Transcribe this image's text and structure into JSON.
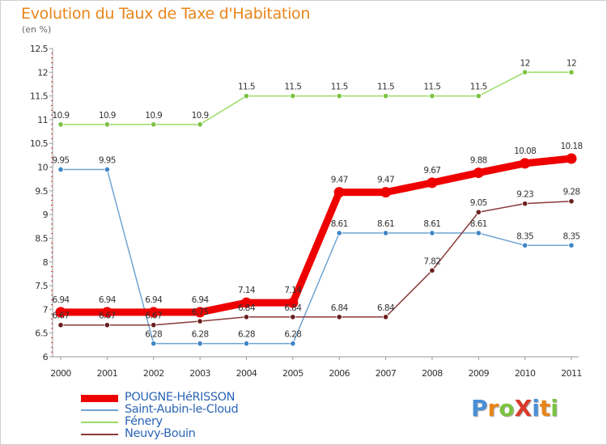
{
  "header": {
    "title": "Evolution du Taux de Taxe d'Habitation",
    "subtitle": "(en %)"
  },
  "logo": {
    "text": "ProXiti",
    "letters": [
      {
        "ch": "P",
        "color": "#4a8fd6"
      },
      {
        "ch": "r",
        "color": "#e8851a"
      },
      {
        "ch": "o",
        "color": "#7cc242"
      },
      {
        "ch": "X",
        "color": "#d93a2b"
      },
      {
        "ch": "i",
        "color": "#4a8fd6"
      },
      {
        "ch": "t",
        "color": "#e8851a"
      },
      {
        "ch": "i",
        "color": "#7cc242"
      }
    ]
  },
  "chart_data": {
    "type": "line",
    "title": "Evolution du Taux de Taxe d'Habitation",
    "subtitle": "(en %)",
    "xlabel": "",
    "ylabel": "",
    "x": [
      "2000",
      "2001",
      "2002",
      "2003",
      "2004",
      "2005",
      "2006",
      "2007",
      "2008",
      "2009",
      "2010",
      "2011"
    ],
    "ylim": [
      6,
      12.5
    ],
    "yticks": [
      "6",
      "6.5",
      "7",
      "7.5",
      "8",
      "8.5",
      "9",
      "9.5",
      "10",
      "10.5",
      "11",
      "11.5",
      "12",
      "12.5"
    ],
    "grid": false,
    "legend_position": "bottom-left",
    "series": [
      {
        "name": "POUGNE-HéRISSON",
        "color": "#ee0000",
        "marker_color": "#ee0000",
        "emphasis": true,
        "values": [
          6.94,
          6.94,
          6.94,
          6.94,
          7.14,
          7.14,
          9.47,
          9.47,
          9.67,
          9.88,
          10.08,
          10.18
        ],
        "labels": [
          "6.94",
          "6.94",
          "6.94",
          "6.94",
          "7.14",
          "7.14",
          "9.47",
          "9.47",
          "9.67",
          "9.88",
          "10.08",
          "10.18"
        ]
      },
      {
        "name": "Saint-Aubin-le-Cloud",
        "color": "#6fa3d1",
        "marker_color": "#3f86c7",
        "values": [
          9.95,
          9.95,
          6.28,
          6.28,
          6.28,
          6.28,
          8.61,
          8.61,
          8.61,
          8.61,
          8.35,
          8.35
        ],
        "labels": [
          "9.95",
          "9.95",
          "6.28",
          "6.28",
          "6.28",
          "6.28",
          "8.61",
          "8.61",
          "8.61",
          "8.61",
          "8.35",
          "8.35"
        ]
      },
      {
        "name": "Fénery",
        "color": "#99dd66",
        "marker_color": "#7cc242",
        "values": [
          10.9,
          10.9,
          10.9,
          10.9,
          11.5,
          11.5,
          11.5,
          11.5,
          11.5,
          11.5,
          12,
          12
        ],
        "labels": [
          "10.9",
          "10.9",
          "10.9",
          "10.9",
          "11.5",
          "11.5",
          "11.5",
          "11.5",
          "11.5",
          "11.5",
          "12",
          "12"
        ]
      },
      {
        "name": "Neuvy-Bouin",
        "color": "#8a3a3a",
        "marker_color": "#6b1e1e",
        "values": [
          6.67,
          6.67,
          6.67,
          6.75,
          6.84,
          6.84,
          6.84,
          6.84,
          7.82,
          9.05,
          9.23,
          9.28
        ],
        "labels": [
          "6.67",
          "6.67",
          "6.67",
          "6.75",
          "6.84",
          "6.84",
          "6.84",
          "6.84",
          "7.82",
          "9.05",
          "9.23",
          "9.28"
        ]
      }
    ]
  }
}
